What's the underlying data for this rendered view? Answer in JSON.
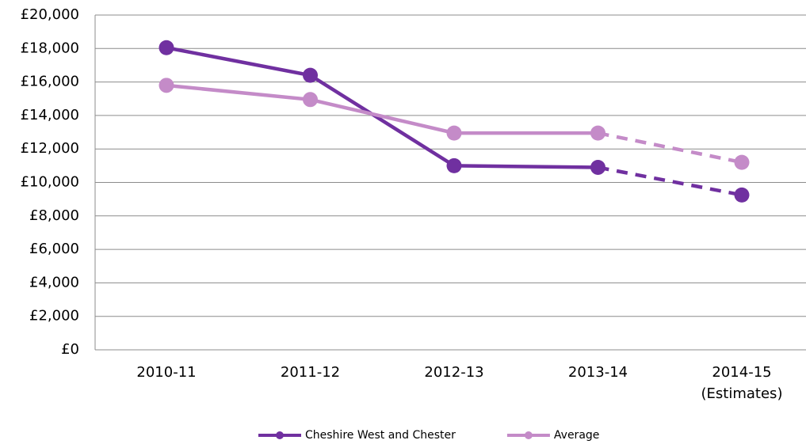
{
  "chart_data": {
    "type": "line",
    "categories": [
      "2010-11",
      "2011-12",
      "2012-13",
      "2013-14",
      "2014-15 (Estimates)"
    ],
    "series": [
      {
        "name": "Cheshire West and Chester",
        "color": "#7030a0",
        "values": [
          18050,
          16400,
          11000,
          10900,
          9250
        ],
        "dashed_last_segment": true
      },
      {
        "name": "Average",
        "color": "#c48bc8",
        "values": [
          15800,
          14950,
          12950,
          12950,
          11200
        ],
        "dashed_last_segment": true
      }
    ],
    "ylim": [
      0,
      20000
    ],
    "yticks": [
      {
        "value": 0,
        "label": "£0"
      },
      {
        "value": 2000,
        "label": "£2,000"
      },
      {
        "value": 4000,
        "label": "£4,000"
      },
      {
        "value": 6000,
        "label": "£6,000"
      },
      {
        "value": 8000,
        "label": "£8,000"
      },
      {
        "value": 10000,
        "label": "£10,000"
      },
      {
        "value": 12000,
        "label": "£12,000"
      },
      {
        "value": 14000,
        "label": "£14,000"
      },
      {
        "value": 16000,
        "label": "£16,000"
      },
      {
        "value": 18000,
        "label": "£18,000"
      },
      {
        "value": 20000,
        "label": "£20,000"
      }
    ],
    "grid": true,
    "legend": "bottom"
  }
}
